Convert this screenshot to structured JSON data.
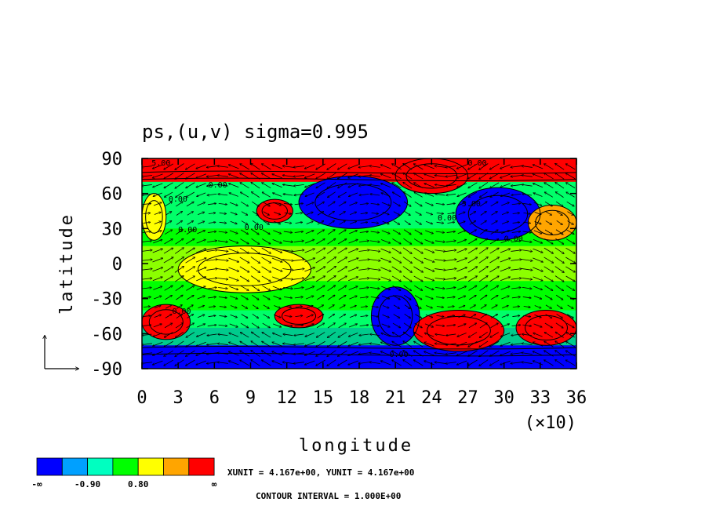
{
  "chart_data": {
    "type": "heatmap",
    "title": "ps,(u,v) sigma=0.995",
    "xlabel": "longitude",
    "ylabel": "latitude",
    "x_ticks": [
      "0",
      "3",
      "6",
      "9",
      "12",
      "15",
      "18",
      "21",
      "24",
      "27",
      "30",
      "33",
      "36"
    ],
    "x_multiplier": "(×10)",
    "y_ticks": [
      "90",
      "60",
      "30",
      "0",
      "-30",
      "-60",
      "-90"
    ],
    "xlim": [
      0,
      360
    ],
    "ylim": [
      -90,
      90
    ],
    "contour_labels": [
      "5.00",
      "0.00",
      "0.00",
      "0.00",
      "0.00",
      "0.00",
      "5.00",
      "0.00",
      "0.00",
      "0.00",
      "0.00"
    ],
    "colorbar": {
      "colors": [
        "#0000ff",
        "#00a0ff",
        "#00ffc0",
        "#00ff00",
        "#ffff00",
        "#ffa500",
        "#ff0000"
      ],
      "labels": [
        "-∞",
        "-0.90",
        "0.80",
        "∞"
      ]
    },
    "units_note": "XUNIT = 4.167e+00, YUNIT = 4.167e+00",
    "contour_note": "CONTOUR INTERVAL = 1.000E+00",
    "regions": [
      {
        "band": "polar-north",
        "lon": [
          0,
          360
        ],
        "lat": [
          70,
          90
        ],
        "level": 6
      },
      {
        "band": "polar-south",
        "lon": [
          0,
          360
        ],
        "lat": [
          -90,
          -70
        ],
        "level": 0
      },
      {
        "band": "blob",
        "lon": [
          130,
          220
        ],
        "lat": [
          30,
          75
        ],
        "level": 0
      },
      {
        "band": "blob",
        "lon": [
          260,
          330
        ],
        "lat": [
          20,
          65
        ],
        "level": 0
      },
      {
        "band": "blob",
        "lon": [
          190,
          230
        ],
        "lat": [
          -70,
          -20
        ],
        "level": 0
      },
      {
        "band": "blob",
        "lon": [
          95,
          125
        ],
        "lat": [
          35,
          55
        ],
        "level": 6
      },
      {
        "band": "blob",
        "lon": [
          110,
          150
        ],
        "lat": [
          -55,
          -35
        ],
        "level": 6
      },
      {
        "band": "blob",
        "lon": [
          0,
          40
        ],
        "lat": [
          -65,
          -35
        ],
        "level": 6
      },
      {
        "band": "blob",
        "lon": [
          225,
          300
        ],
        "lat": [
          -75,
          -40
        ],
        "level": 6
      },
      {
        "band": "blob",
        "lon": [
          310,
          360
        ],
        "lat": [
          -70,
          -40
        ],
        "level": 6
      },
      {
        "band": "blob",
        "lon": [
          320,
          360
        ],
        "lat": [
          20,
          50
        ],
        "level": 5
      },
      {
        "band": "blob",
        "lon": [
          210,
          270
        ],
        "lat": [
          60,
          90
        ],
        "level": 6
      },
      {
        "band": "blob",
        "lon": [
          30,
          140
        ],
        "lat": [
          -25,
          15
        ],
        "level": 4
      },
      {
        "band": "blob",
        "lon": [
          0,
          20
        ],
        "lat": [
          20,
          60
        ],
        "level": 4
      }
    ]
  }
}
